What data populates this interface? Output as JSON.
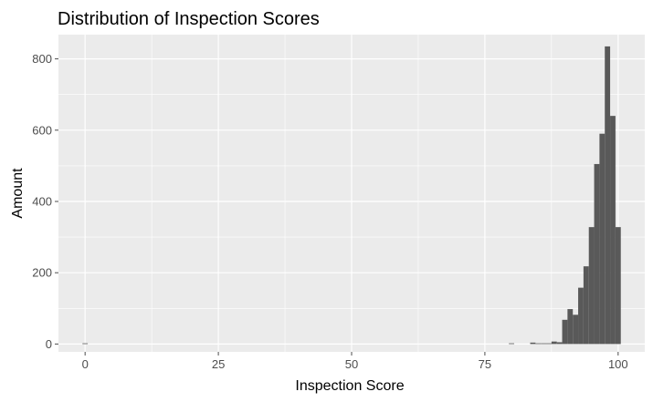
{
  "chart_data": {
    "type": "bar",
    "title": "Distribution of Inspection Scores",
    "xlabel": "Inspection Score",
    "ylabel": "Amount",
    "xlim": [
      -5,
      105
    ],
    "ylim": [
      -22,
      868
    ],
    "x_ticks": [
      0,
      25,
      50,
      75,
      100
    ],
    "y_ticks": [
      0,
      200,
      400,
      600,
      800
    ],
    "grid": true,
    "bin_width": 1,
    "bins": [
      {
        "x": 0,
        "value": 2
      },
      {
        "x": 80,
        "value": 2
      },
      {
        "x": 84,
        "value": 4
      },
      {
        "x": 85,
        "value": 2
      },
      {
        "x": 86,
        "value": 2
      },
      {
        "x": 87,
        "value": 2
      },
      {
        "x": 88,
        "value": 7
      },
      {
        "x": 89,
        "value": 5
      },
      {
        "x": 90,
        "value": 68
      },
      {
        "x": 91,
        "value": 98
      },
      {
        "x": 92,
        "value": 82
      },
      {
        "x": 93,
        "value": 158
      },
      {
        "x": 94,
        "value": 218
      },
      {
        "x": 95,
        "value": 328
      },
      {
        "x": 96,
        "value": 505
      },
      {
        "x": 97,
        "value": 590
      },
      {
        "x": 98,
        "value": 835
      },
      {
        "x": 99,
        "value": 640
      },
      {
        "x": 100,
        "value": 328
      }
    ]
  },
  "colors": {
    "panel": "#ebebeb",
    "grid_major": "#ffffff",
    "bar": "#595959",
    "tick": "#4d4d4d"
  }
}
